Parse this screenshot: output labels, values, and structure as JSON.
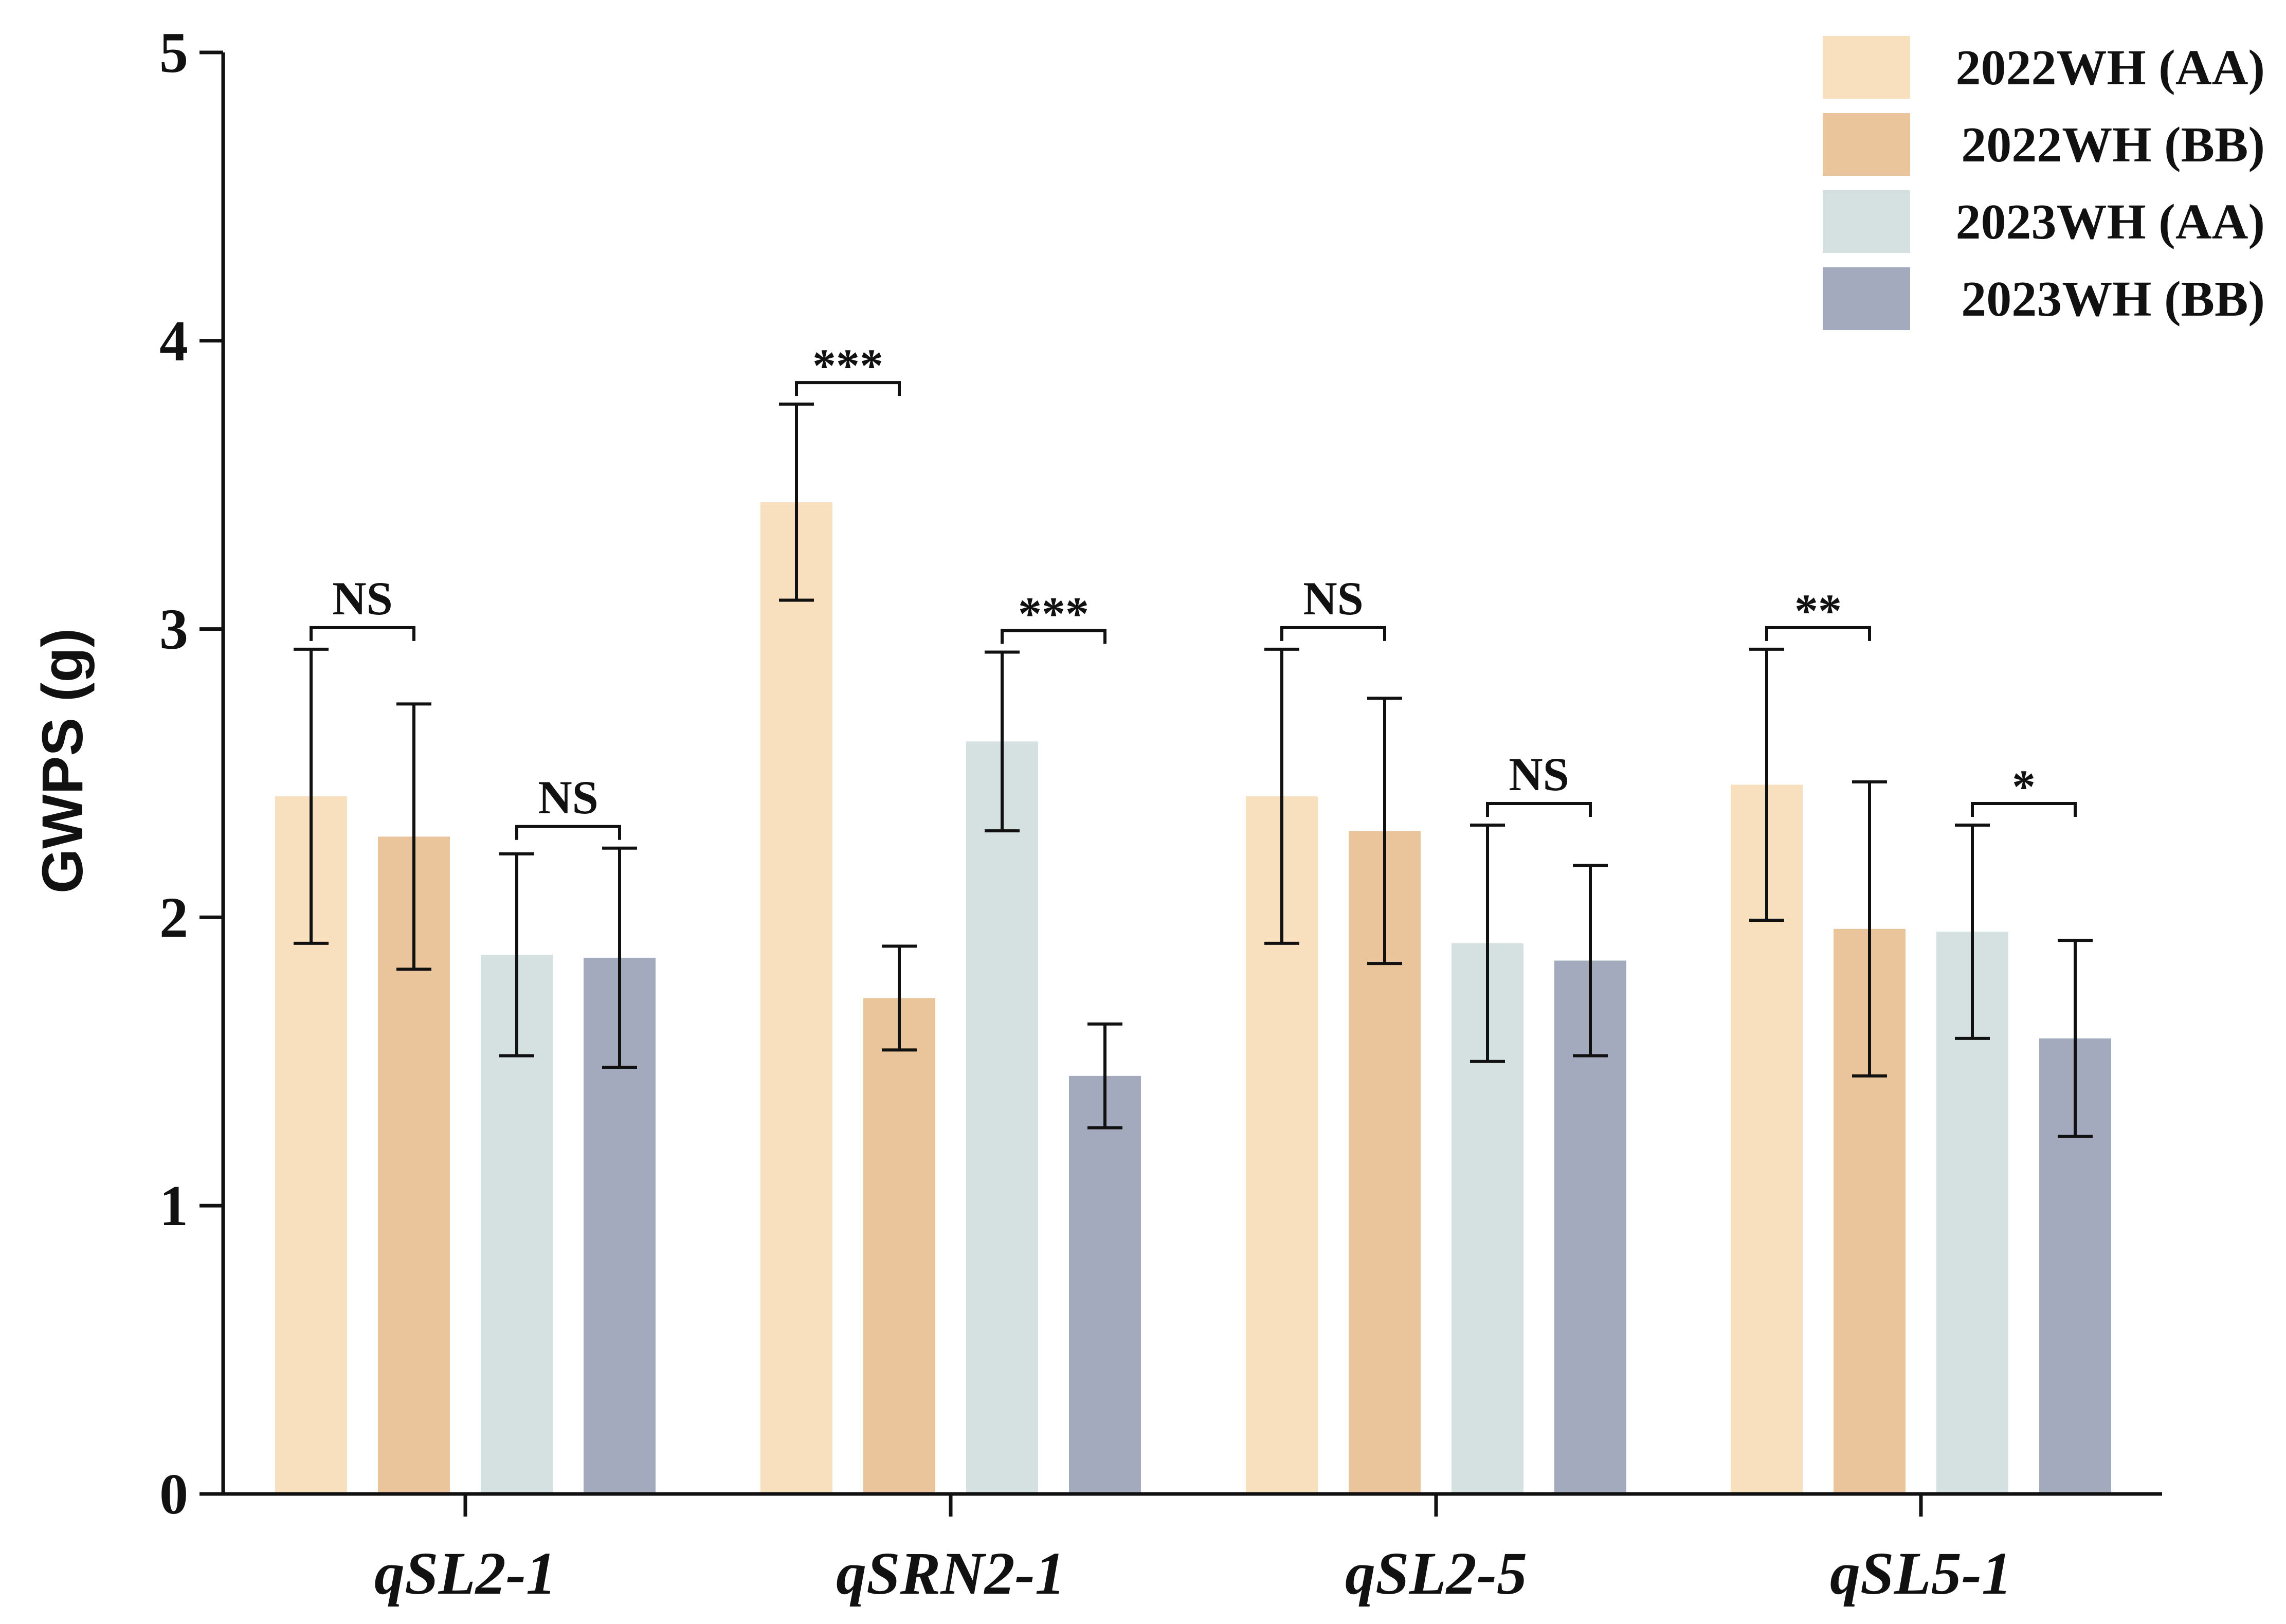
{
  "chart_data": {
    "type": "bar",
    "title": "",
    "xlabel": "",
    "ylabel": "GWPS (g)",
    "ylim": [
      0,
      5
    ],
    "yticks": [
      "0",
      "1",
      "2",
      "3",
      "4",
      "5"
    ],
    "grid": false,
    "legend_position": "top-right",
    "categories": [
      "qSL2-1",
      "qSRN2-1",
      "qSL2-5",
      "qSL5-1"
    ],
    "series": [
      {
        "name": "2022WH (AA)",
        "color": "#f8dfbd",
        "values": [
          2.42,
          3.44,
          2.42,
          2.46
        ],
        "errors": [
          0.51,
          0.34,
          0.51,
          0.47
        ]
      },
      {
        "name": "2022WH (BB)",
        "color": "#eac49a",
        "values": [
          2.28,
          1.72,
          2.3,
          1.96
        ],
        "errors": [
          0.46,
          0.18,
          0.46,
          0.51
        ]
      },
      {
        "name": "2023WH (AA)",
        "color": "#d5e1e0",
        "values": [
          1.87,
          2.61,
          1.91,
          1.95
        ],
        "errors": [
          0.35,
          0.31,
          0.41,
          0.37
        ]
      },
      {
        "name": "2023WH (BB)",
        "color": "#a3aabd",
        "values": [
          1.86,
          1.45,
          1.85,
          1.58
        ],
        "errors": [
          0.38,
          0.18,
          0.33,
          0.34
        ]
      }
    ],
    "significance": [
      {
        "category": "qSL2-1",
        "pair": [
          0,
          1
        ],
        "label": "NS"
      },
      {
        "category": "qSL2-1",
        "pair": [
          2,
          3
        ],
        "label": "NS"
      },
      {
        "category": "qSRN2-1",
        "pair": [
          0,
          1
        ],
        "label": "***"
      },
      {
        "category": "qSRN2-1",
        "pair": [
          2,
          3
        ],
        "label": "***"
      },
      {
        "category": "qSL2-5",
        "pair": [
          0,
          1
        ],
        "label": "NS"
      },
      {
        "category": "qSL2-5",
        "pair": [
          2,
          3
        ],
        "label": "NS"
      },
      {
        "category": "qSL5-1",
        "pair": [
          0,
          1
        ],
        "label": "**"
      },
      {
        "category": "qSL5-1",
        "pair": [
          2,
          3
        ],
        "label": "*"
      }
    ]
  }
}
